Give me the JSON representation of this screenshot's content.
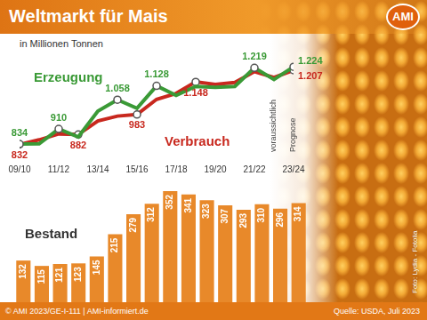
{
  "page": {
    "logo": "AMI",
    "footer": "© AMI 2023/GE-I-111 | AMI-informiert.de",
    "source": "Quelle: USDA, Juli 2023",
    "photo_credit": "Foto: Lydia - Fotolia"
  },
  "chart_data": [
    {
      "type": "line",
      "title": "Weltmarkt für Mais",
      "subtitle": "in Millionen Tonnen",
      "categories": [
        "09/10",
        null,
        "11/12",
        null,
        "13/14",
        null,
        "15/16",
        null,
        "17/18",
        null,
        "19/20",
        null,
        "21/22",
        null,
        "23/24"
      ],
      "series": [
        {
          "name": "Erzeugung",
          "color": "#3a9a36",
          "values": [
            834,
            835,
            910,
            870,
            1000,
            1058,
            1015,
            1128,
            1080,
            1125,
            1120,
            1125,
            1219,
            1160,
            1224
          ],
          "value_labels": [
            "834",
            null,
            "910",
            null,
            null,
            "1.058",
            null,
            "1.128",
            null,
            null,
            null,
            null,
            "1.219",
            null,
            "1.224"
          ]
        },
        {
          "name": "Verbrauch",
          "color": "#c8281e",
          "values": [
            832,
            855,
            885,
            882,
            950,
            975,
            983,
            1060,
            1090,
            1148,
            1135,
            1145,
            1200,
            1170,
            1207
          ],
          "value_labels": [
            "832",
            null,
            null,
            "882",
            null,
            null,
            "983",
            null,
            null,
            "1.148",
            null,
            null,
            null,
            null,
            "1.207"
          ]
        }
      ],
      "annotations": [
        "voraussichtlich",
        "Prognose"
      ],
      "ylim": [
        780,
        1270
      ],
      "grid": false,
      "tick_labels": "x"
    },
    {
      "type": "bar",
      "title": "Bestand",
      "categories": [
        null,
        null,
        null,
        null,
        null,
        null,
        null,
        null,
        null,
        null,
        null,
        null,
        null,
        null,
        null,
        null
      ],
      "values": [
        132,
        115,
        121,
        123,
        145,
        215,
        279,
        312,
        352,
        341,
        323,
        307,
        293,
        310,
        296,
        314
      ],
      "color": "#e8892a",
      "ylim": [
        0,
        380
      ],
      "grid": false,
      "data_labels": true,
      "tick_labels": false
    }
  ]
}
